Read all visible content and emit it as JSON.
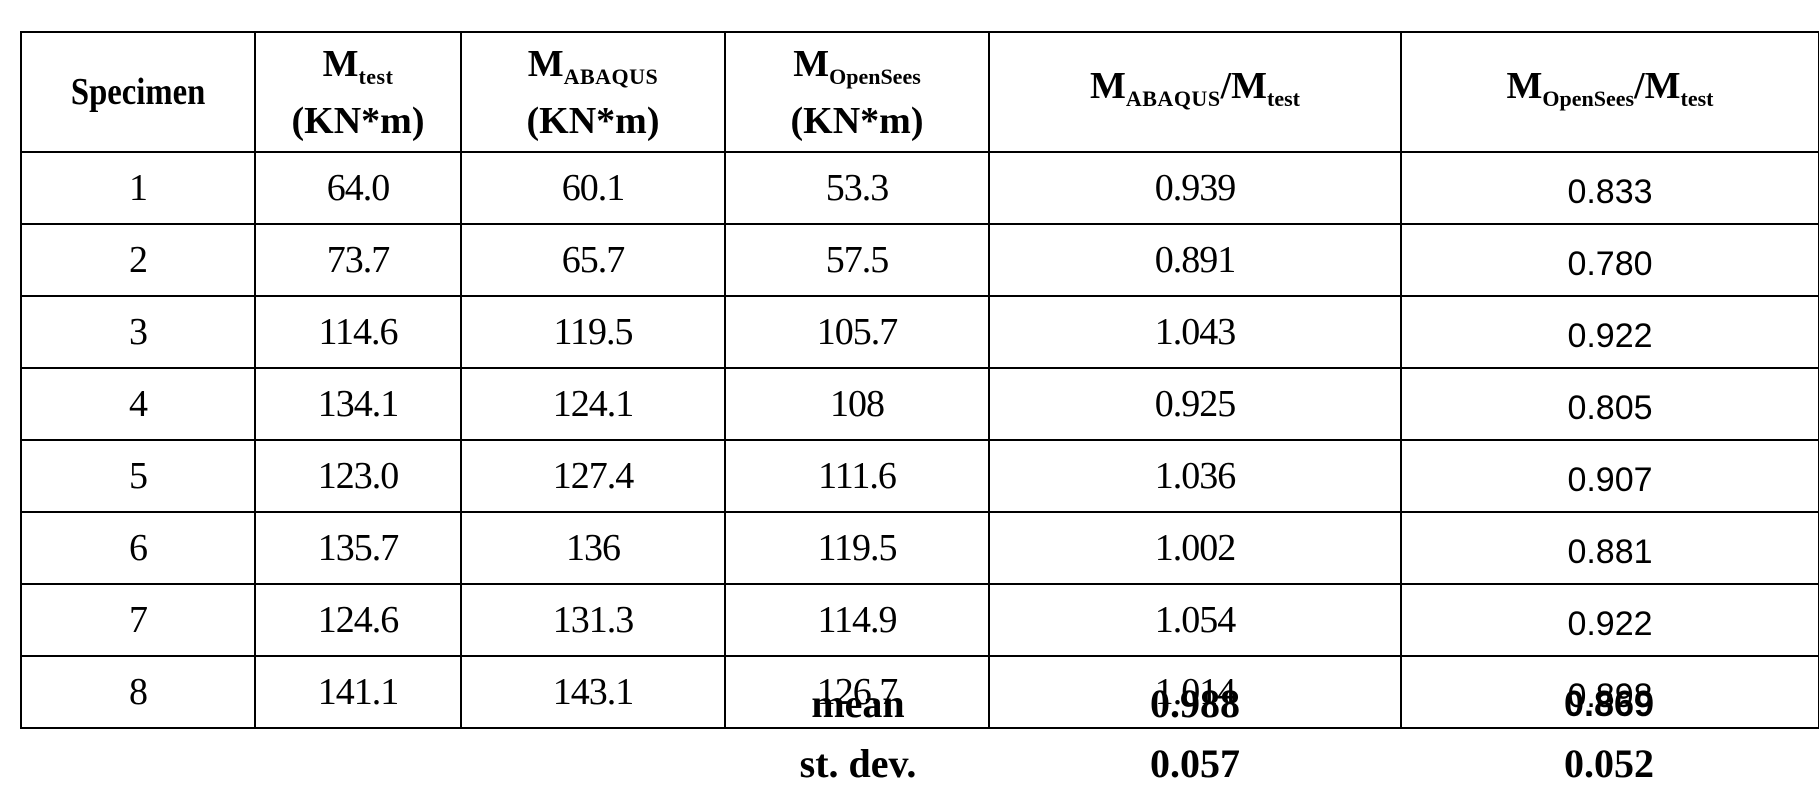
{
  "table": {
    "headers": {
      "specimen": "Specimen",
      "m_test": {
        "main": "M",
        "sub": "test",
        "unit": "(KN*m)"
      },
      "m_abaqus": {
        "main": "M",
        "sub": "ABAQUS",
        "unit": "(KN*m)"
      },
      "m_opensees": {
        "main": "M",
        "sub": "OpenSees",
        "unit": "(KN*m)"
      },
      "ratio_abaqus": {
        "m1": "M",
        "sub1": "ABAQUS",
        "sep": "/M",
        "sub2": "test"
      },
      "ratio_opensees": {
        "m1": "M",
        "sub1": "OpenSees",
        "sep": "/M",
        "sub2": "test"
      }
    },
    "rows": [
      {
        "specimen": "1",
        "m_test": "64.0",
        "m_abaqus": "60.1",
        "m_opensees": "53.3",
        "ratio_abaqus": "0.939",
        "ratio_opensees": "0.833"
      },
      {
        "specimen": "2",
        "m_test": "73.7",
        "m_abaqus": "65.7",
        "m_opensees": "57.5",
        "ratio_abaqus": "0.891",
        "ratio_opensees": "0.780"
      },
      {
        "specimen": "3",
        "m_test": "114.6",
        "m_abaqus": "119.5",
        "m_opensees": "105.7",
        "ratio_abaqus": "1.043",
        "ratio_opensees": "0.922"
      },
      {
        "specimen": "4",
        "m_test": "134.1",
        "m_abaqus": "124.1",
        "m_opensees": "108",
        "ratio_abaqus": "0.925",
        "ratio_opensees": "0.805"
      },
      {
        "specimen": "5",
        "m_test": "123.0",
        "m_abaqus": "127.4",
        "m_opensees": "111.6",
        "ratio_abaqus": "1.036",
        "ratio_opensees": "0.907"
      },
      {
        "specimen": "6",
        "m_test": "135.7",
        "m_abaqus": "136",
        "m_opensees": "119.5",
        "ratio_abaqus": "1.002",
        "ratio_opensees": "0.881"
      },
      {
        "specimen": "7",
        "m_test": "124.6",
        "m_abaqus": "131.3",
        "m_opensees": "114.9",
        "ratio_abaqus": "1.054",
        "ratio_opensees": "0.922"
      },
      {
        "specimen": "8",
        "m_test": "141.1",
        "m_abaqus": "143.1",
        "m_opensees": "126.7",
        "ratio_abaqus": "1.014",
        "ratio_opensees": "0.898"
      }
    ]
  },
  "summary": {
    "mean": {
      "label": "mean",
      "ratio_abaqus": "0.988",
      "ratio_opensees": "0.869"
    },
    "stdev": {
      "label": "st. dev.",
      "ratio_abaqus": "0.057",
      "ratio_opensees": "0.052"
    }
  }
}
